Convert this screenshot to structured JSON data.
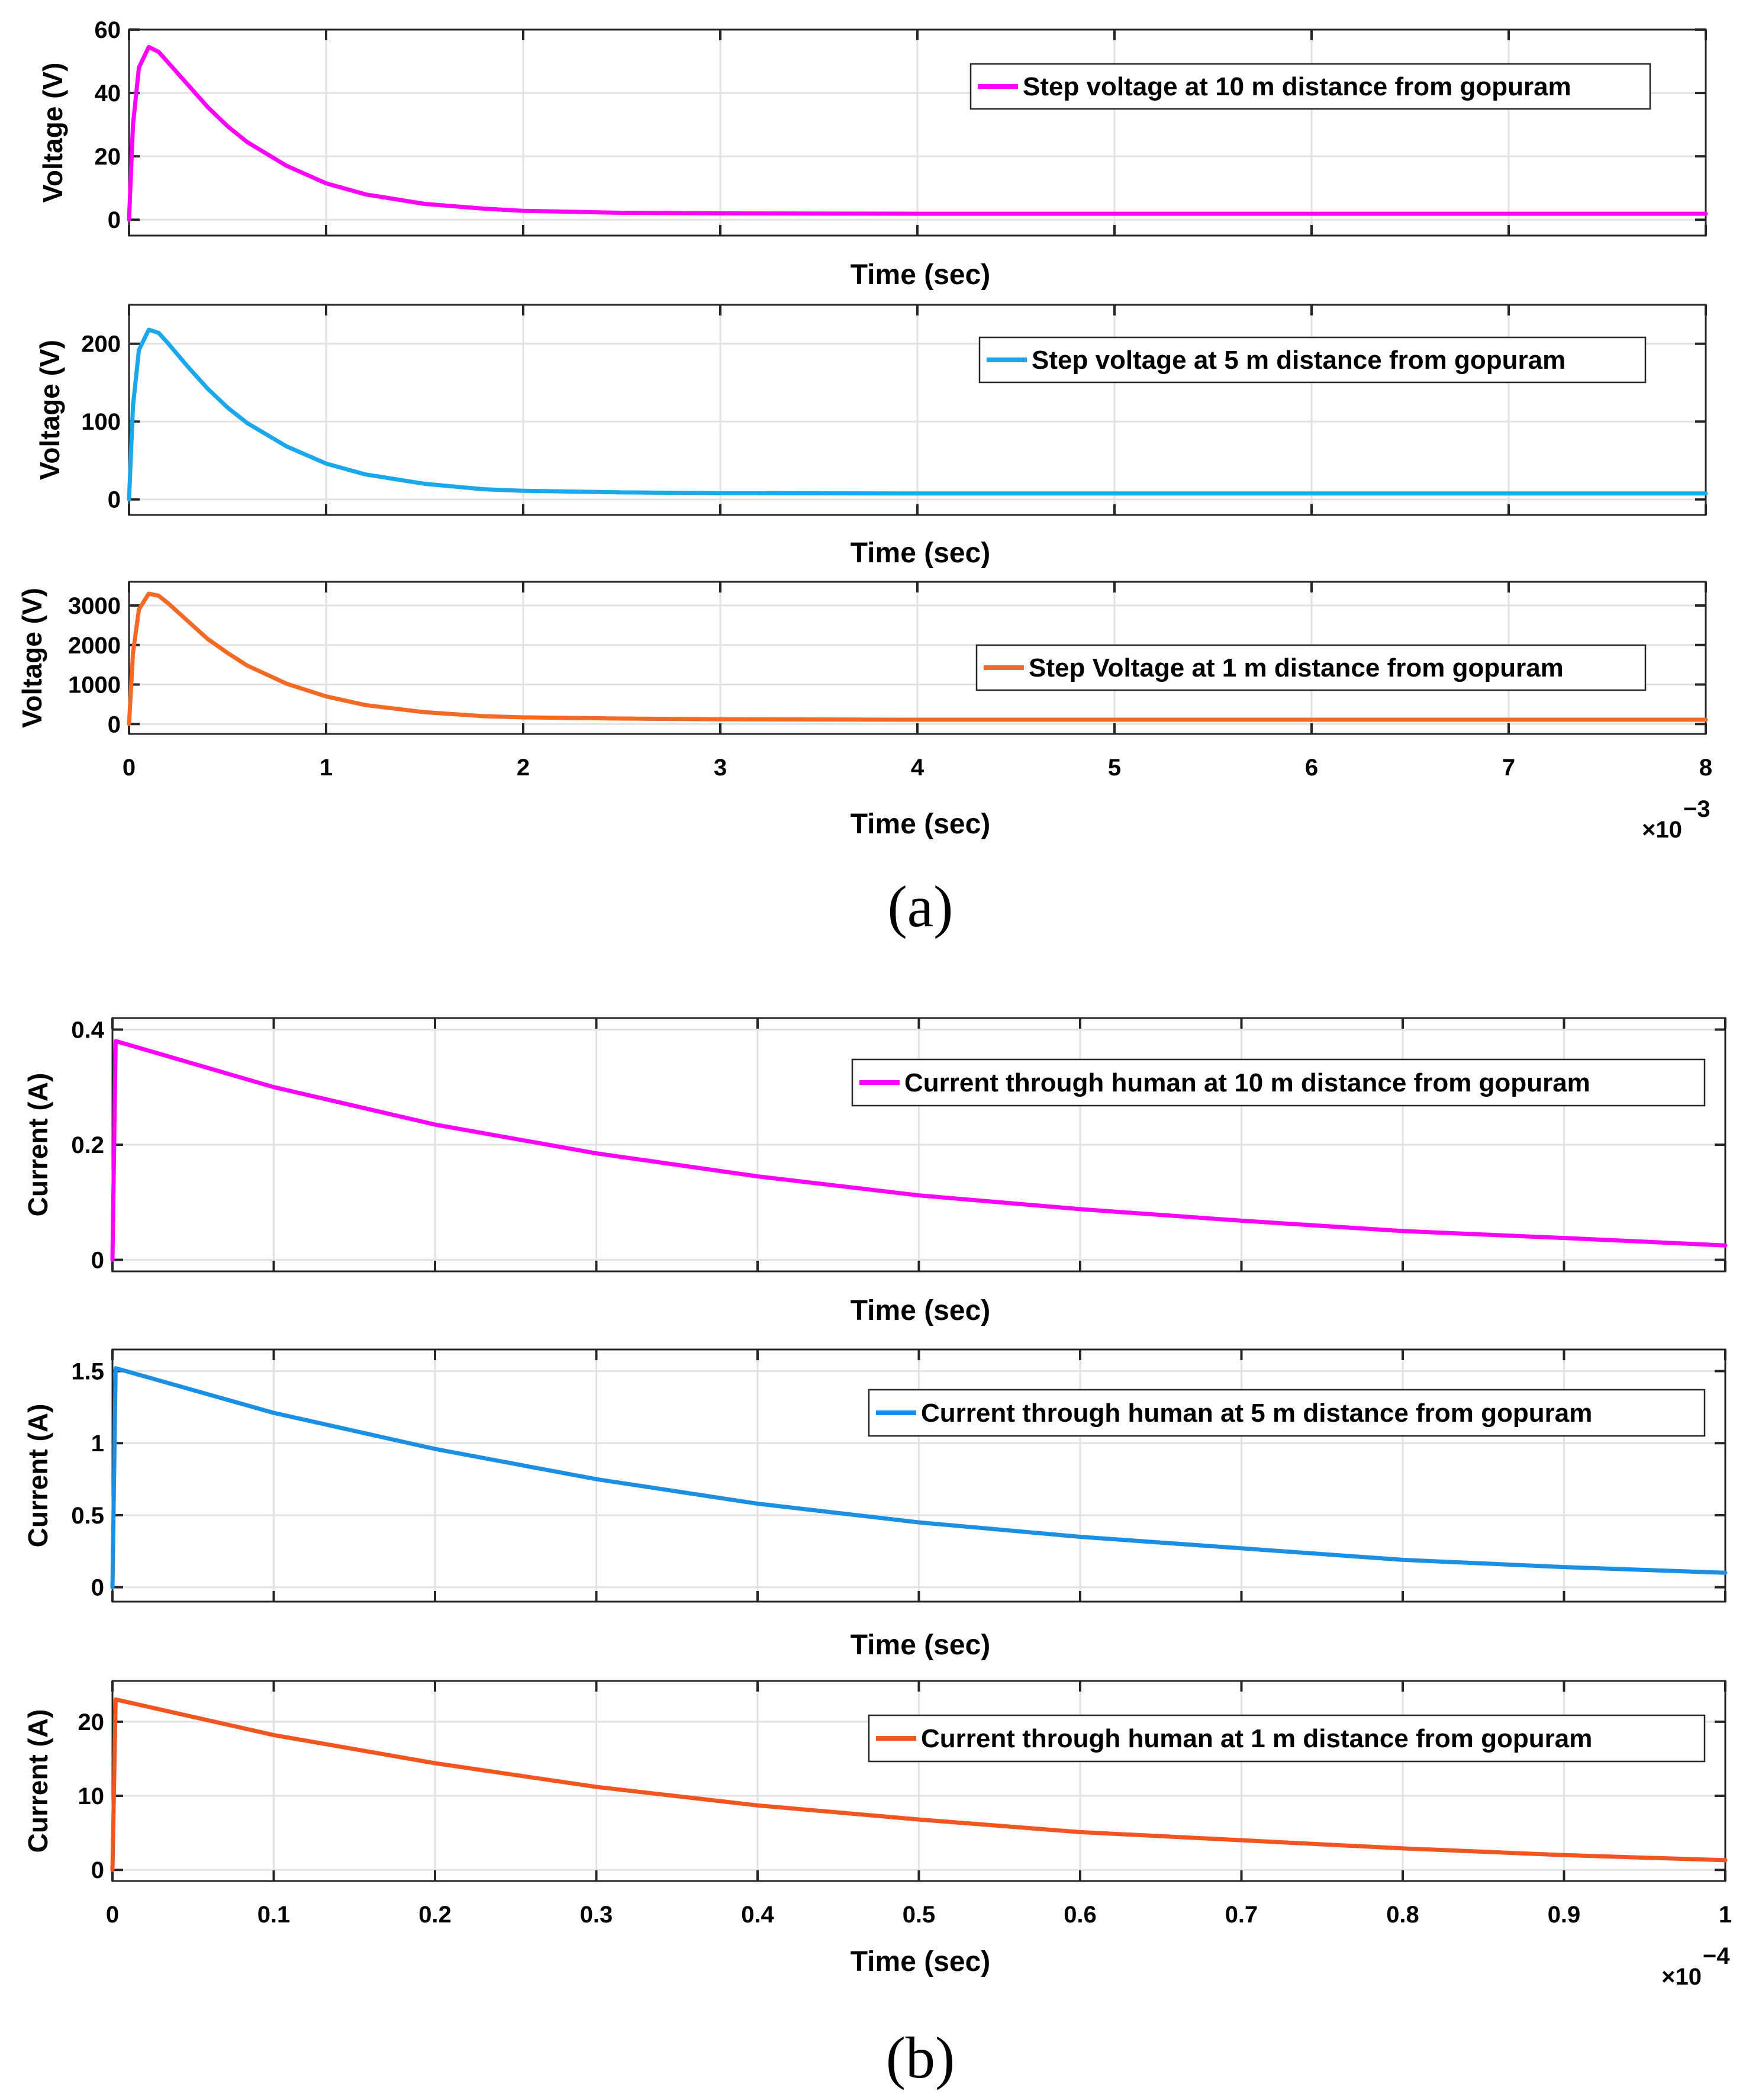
{
  "chart_data": [
    {
      "panel": "(a)",
      "type": "line",
      "subplot": 1,
      "xlabel": "Time (sec)",
      "ylabel": "Voltage (V)",
      "xlim": [
        0,
        8
      ],
      "ylim": [
        -5,
        60
      ],
      "yticks": [
        0,
        20,
        40,
        60
      ],
      "xticks": [
        0,
        1,
        2,
        3,
        4,
        5,
        6,
        7,
        8
      ],
      "xtick_labels_shown": false,
      "x_multiplier": "",
      "grid": true,
      "legend_position": "top-right",
      "series": [
        {
          "name": "Step voltage at 10 m distance from gopuram",
          "color": "#ff00ff",
          "x": [
            0,
            0.02,
            0.05,
            0.1,
            0.15,
            0.2,
            0.3,
            0.4,
            0.5,
            0.6,
            0.8,
            1.0,
            1.2,
            1.5,
            1.8,
            2.0,
            2.5,
            3.0,
            4.0,
            5.0,
            6.0,
            7.0,
            8.0
          ],
          "y": [
            0,
            30,
            48,
            54.5,
            53,
            49.5,
            42.5,
            35.5,
            29.5,
            24.5,
            17,
            11.5,
            8,
            5,
            3.5,
            2.8,
            2.2,
            2.0,
            1.9,
            1.9,
            1.9,
            1.9,
            1.9
          ]
        }
      ]
    },
    {
      "panel": "(a)",
      "type": "line",
      "subplot": 2,
      "xlabel": "Time (sec)",
      "ylabel": "Voltage (V)",
      "xlim": [
        0,
        8
      ],
      "ylim": [
        -20,
        250
      ],
      "yticks": [
        0,
        100,
        200
      ],
      "xticks": [
        0,
        1,
        2,
        3,
        4,
        5,
        6,
        7,
        8
      ],
      "xtick_labels_shown": false,
      "x_multiplier": "",
      "grid": true,
      "legend_position": "top-right",
      "series": [
        {
          "name": "Step voltage at 5 m distance from gopuram",
          "color": "#1aa7ec",
          "x": [
            0,
            0.02,
            0.05,
            0.1,
            0.15,
            0.2,
            0.3,
            0.4,
            0.5,
            0.6,
            0.8,
            1.0,
            1.2,
            1.5,
            1.8,
            2.0,
            2.5,
            3.0,
            4.0,
            5.0,
            6.0,
            7.0,
            8.0
          ],
          "y": [
            0,
            120,
            192,
            218,
            214,
            200,
            170,
            142,
            118,
            98,
            68,
            46,
            32,
            20,
            13,
            11,
            9,
            8,
            7.5,
            7.5,
            7.5,
            7.5,
            7.5
          ]
        }
      ]
    },
    {
      "panel": "(a)",
      "type": "line",
      "subplot": 3,
      "xlabel": "Time (sec)",
      "ylabel": "Voltage (V)",
      "xlim": [
        0,
        8
      ],
      "ylim": [
        -250,
        3600
      ],
      "yticks": [
        0,
        1000,
        2000,
        3000
      ],
      "xticks": [
        0,
        1,
        2,
        3,
        4,
        5,
        6,
        7,
        8
      ],
      "xtick_labels_shown": true,
      "x_multiplier": "×10",
      "x_multiplier_exponent": "−3",
      "grid": true,
      "legend_position": "right",
      "series": [
        {
          "name": "Step Voltage at 1 m distance from gopuram",
          "color": "#f46a25",
          "x": [
            0,
            0.02,
            0.05,
            0.1,
            0.15,
            0.2,
            0.3,
            0.4,
            0.5,
            0.6,
            0.8,
            1.0,
            1.2,
            1.5,
            1.8,
            2.0,
            2.5,
            3.0,
            4.0,
            5.0,
            6.0,
            7.0,
            8.0
          ],
          "y": [
            0,
            1800,
            2900,
            3300,
            3250,
            3050,
            2600,
            2150,
            1800,
            1480,
            1020,
            700,
            480,
            300,
            200,
            170,
            140,
            120,
            110,
            110,
            110,
            110,
            110
          ]
        }
      ]
    },
    {
      "panel": "(b)",
      "type": "line",
      "subplot": 1,
      "xlabel": "Time (sec)",
      "ylabel": "Current (A)",
      "xlim": [
        0,
        1
      ],
      "ylim": [
        -0.02,
        0.42
      ],
      "yticks": [
        0,
        0.2,
        0.4
      ],
      "xticks": [
        0,
        0.1,
        0.2,
        0.3,
        0.4,
        0.5,
        0.6,
        0.7,
        0.8,
        0.9,
        1
      ],
      "xtick_labels_shown": false,
      "x_multiplier": "",
      "grid": true,
      "legend_position": "top-right",
      "series": [
        {
          "name": "Current through human at 10 m distance from gopuram",
          "color": "#ff00ff",
          "x": [
            0,
            0.002,
            0.1,
            0.2,
            0.3,
            0.4,
            0.5,
            0.6,
            0.7,
            0.8,
            0.9,
            1.0
          ],
          "y": [
            0,
            0.38,
            0.3,
            0.235,
            0.185,
            0.145,
            0.112,
            0.088,
            0.068,
            0.05,
            0.038,
            0.025
          ]
        }
      ]
    },
    {
      "panel": "(b)",
      "type": "line",
      "subplot": 2,
      "xlabel": "Time (sec)",
      "ylabel": "Current (A)",
      "xlim": [
        0,
        1
      ],
      "ylim": [
        -0.1,
        1.65
      ],
      "yticks": [
        0,
        0.5,
        1,
        1.5
      ],
      "ytick_labels": [
        "0",
        "0.5",
        "1",
        "1.5"
      ],
      "xticks": [
        0,
        0.1,
        0.2,
        0.3,
        0.4,
        0.5,
        0.6,
        0.7,
        0.8,
        0.9,
        1
      ],
      "xtick_labels_shown": false,
      "x_multiplier": "",
      "grid": true,
      "legend_position": "top-right",
      "series": [
        {
          "name": "Current through human at 5 m distance from gopuram",
          "color": "#1a8fe3",
          "x": [
            0,
            0.002,
            0.1,
            0.2,
            0.3,
            0.4,
            0.5,
            0.6,
            0.7,
            0.8,
            0.9,
            1.0
          ],
          "y": [
            0,
            1.52,
            1.21,
            0.96,
            0.75,
            0.58,
            0.45,
            0.35,
            0.27,
            0.19,
            0.14,
            0.1
          ]
        }
      ]
    },
    {
      "panel": "(b)",
      "type": "line",
      "subplot": 3,
      "xlabel": "Time (sec)",
      "ylabel": "Current (A)",
      "xlim": [
        0,
        1
      ],
      "ylim": [
        -1.5,
        25.5
      ],
      "yticks": [
        0,
        10,
        20
      ],
      "xticks": [
        0,
        0.1,
        0.2,
        0.3,
        0.4,
        0.5,
        0.6,
        0.7,
        0.8,
        0.9,
        1
      ],
      "xtick_labels": [
        "0",
        "0.1",
        "0.2",
        "0.3",
        "0.4",
        "0.5",
        "0.6",
        "0.7",
        "0.8",
        "0.9",
        "1"
      ],
      "xtick_labels_shown": true,
      "x_multiplier": "×10",
      "x_multiplier_exponent": "−4",
      "grid": true,
      "legend_position": "top-right",
      "series": [
        {
          "name": "Current through human at 1 m distance from gopuram",
          "color": "#f2551f",
          "x": [
            0,
            0.002,
            0.1,
            0.2,
            0.3,
            0.4,
            0.5,
            0.6,
            0.7,
            0.8,
            0.9,
            1.0
          ],
          "y": [
            0,
            23,
            18.2,
            14.4,
            11.2,
            8.7,
            6.8,
            5.1,
            4.0,
            2.9,
            2.0,
            1.3
          ]
        }
      ]
    }
  ],
  "panel_labels": [
    "(a)",
    "(b)"
  ]
}
